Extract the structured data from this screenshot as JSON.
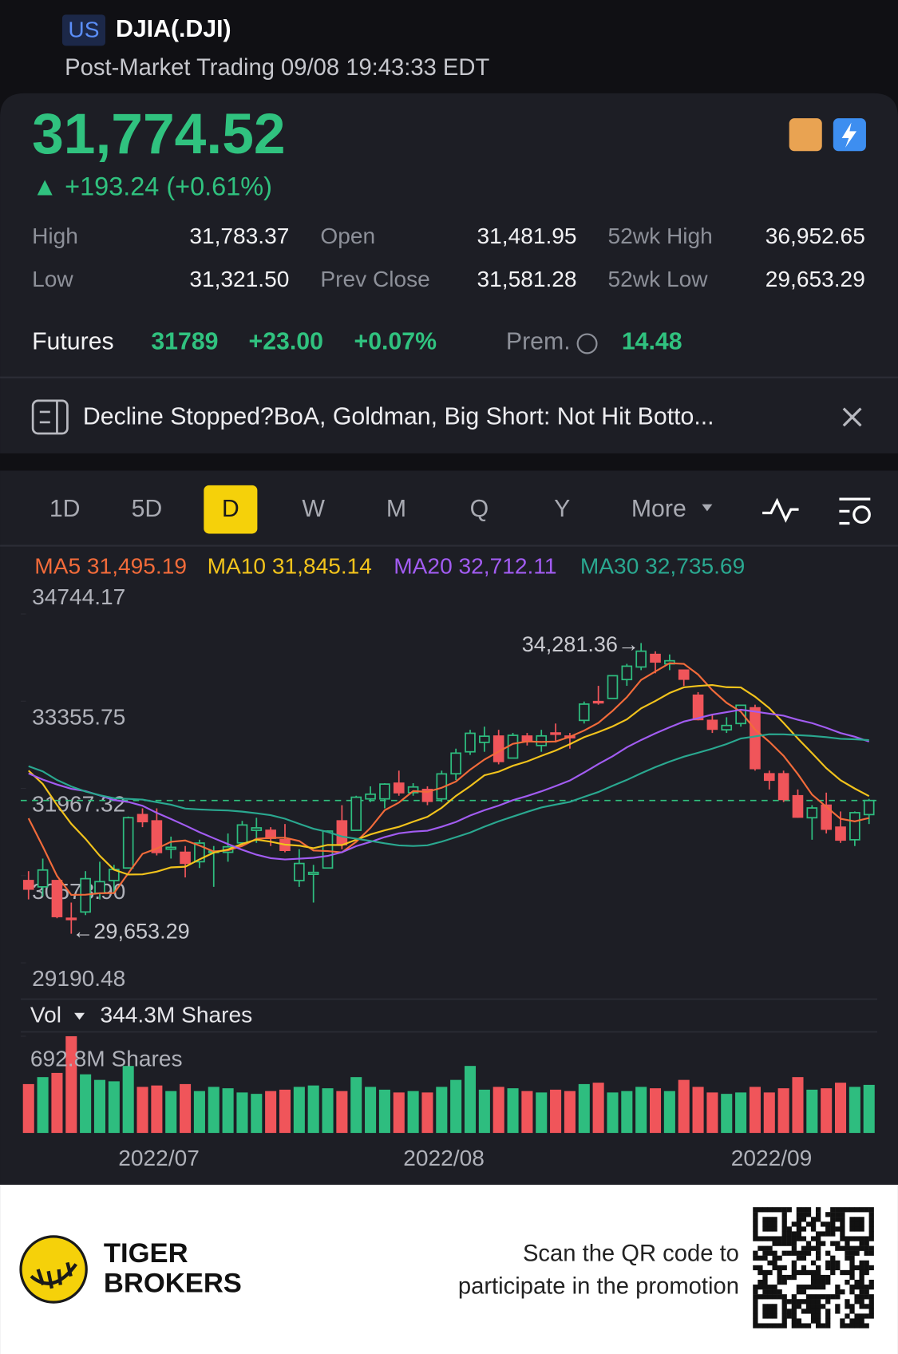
{
  "header": {
    "market": "US",
    "symbol": "DJIA(.DJI)",
    "status": "Post-Market Trading 09/08 19:43:33 EDT"
  },
  "quote": {
    "price": "31,774.52",
    "change": "▲ +193.24 (+0.61%)",
    "stats": [
      {
        "label": "High",
        "value": "31,783.37"
      },
      {
        "label": "Open",
        "value": "31,481.95"
      },
      {
        "label": "52wk High",
        "value": "36,952.65"
      },
      {
        "label": "Low",
        "value": "31,321.50"
      },
      {
        "label": "Prev Close",
        "value": "31,581.28"
      },
      {
        "label": "52wk Low",
        "value": "29,653.29"
      }
    ],
    "futures": {
      "label": "Futures",
      "price": "31789",
      "change": "+23.00",
      "percent": "+0.07%",
      "premium_label": "Prem.",
      "premium": "14.48"
    }
  },
  "news": {
    "headline": "Decline Stopped?BoA, Goldman,  Big Short: Not Hit Botto..."
  },
  "tabs": [
    "1D",
    "5D",
    "D",
    "W",
    "M",
    "Q",
    "Y",
    "More"
  ],
  "active_tab": 2,
  "chart_data": {
    "type": "candlestick",
    "categories": [
      null,
      null,
      null,
      null,
      null,
      null,
      null,
      null,
      null,
      null,
      null,
      null,
      "2022/07",
      null,
      null,
      null,
      null,
      null,
      null,
      null,
      null,
      null,
      null,
      null,
      null,
      null,
      null,
      null,
      null,
      null,
      null,
      null,
      "2022/08",
      null,
      null,
      null,
      null,
      null,
      null,
      null,
      null,
      null,
      null,
      null,
      null,
      null,
      null,
      null,
      null,
      null,
      null,
      null,
      null,
      null,
      null,
      "2022/09",
      null,
      null,
      null,
      null
    ],
    "ohlc": {
      "open": [
        30500,
        30400,
        30500,
        29900,
        30000,
        30300,
        30500,
        30700,
        31550,
        31450,
        31000,
        30950,
        30800,
        30950,
        30950,
        31100,
        31300,
        31300,
        31150,
        30500,
        30600,
        30700,
        31450,
        31300,
        31800,
        31800,
        32050,
        31900,
        31950,
        31800,
        32200,
        32550,
        32700,
        32800,
        32450,
        32800,
        32650,
        32850,
        32800,
        33050,
        33350,
        33400,
        33700,
        33900,
        34100,
        33950,
        33850,
        33450,
        33050,
        32900,
        33000,
        33250,
        32200,
        32200,
        31850,
        31500,
        31700,
        31350,
        31150,
        31550
      ],
      "high": [
        30650,
        30850,
        30500,
        30150,
        30650,
        30800,
        30750,
        31520,
        31650,
        31650,
        31200,
        31050,
        31150,
        31050,
        31250,
        31450,
        31500,
        31350,
        31400,
        31000,
        30750,
        31300,
        31700,
        31850,
        32000,
        32050,
        32250,
        32050,
        32000,
        32250,
        32600,
        32900,
        32950,
        32900,
        32850,
        32850,
        32900,
        33000,
        32850,
        33350,
        33600,
        33770,
        33950,
        34281.36,
        34150,
        34100,
        33850,
        33500,
        33150,
        33100,
        33300,
        33300,
        32250,
        32250,
        31950,
        31700,
        31900,
        31600,
        31600,
        31800
      ],
      "low": [
        30200,
        30250,
        29900,
        29653.29,
        29950,
        30200,
        30300,
        30700,
        31350,
        30900,
        30850,
        30550,
        30700,
        30400,
        30800,
        31050,
        31100,
        31050,
        30950,
        30400,
        30150,
        30700,
        31000,
        31300,
        31750,
        31650,
        31850,
        31850,
        31700,
        31750,
        32100,
        32500,
        32550,
        32350,
        32450,
        32650,
        32550,
        32700,
        32600,
        33000,
        33300,
        33400,
        33600,
        33850,
        33800,
        33850,
        33600,
        33050,
        32850,
        32850,
        32950,
        32250,
        31950,
        31750,
        31500,
        31150,
        31250,
        31100,
        31050,
        31400
      ],
      "close": [
        30364,
        30668,
        29927,
        29888,
        30530,
        30483,
        30677,
        31501,
        31438,
        30947,
        31029,
        30775,
        31097,
        30968,
        31037,
        31385,
        31339,
        31173,
        30981,
        30772,
        30630,
        31288,
        31072,
        31827,
        31875,
        32036,
        31899,
        31990,
        31762,
        32198,
        32529,
        32845,
        32798,
        32396,
        32812,
        32726,
        32803,
        32832,
        32774,
        33309,
        33336,
        33761,
        33913,
        34152,
        33980,
        33999,
        33706,
        33063,
        32910,
        32969,
        33291,
        32283,
        32098,
        31791,
        31510,
        31656,
        31318,
        31145,
        31581,
        31774.52
      ]
    },
    "up_color": "#2ebd7f",
    "down_color": "#f0555a",
    "ma": [
      {
        "name": "MA5",
        "color": "#f26b3a",
        "value_label": "31,495.19",
        "values": [
          31491,
          31043,
          30574,
          30273,
          30275,
          30299,
          30301,
          30616,
          30926,
          31009,
          31118,
          31138,
          31057,
          30963,
          30981,
          31052,
          31165,
          31180,
          31183,
          31130,
          30979,
          30969,
          30949,
          31118,
          31338,
          31620,
          31742,
          31925,
          31912,
          31977,
          32076,
          32265,
          32426,
          32553,
          32676,
          32715,
          32707,
          32714,
          32789,
          32889,
          33011,
          33202,
          33419,
          33694,
          33828,
          33961,
          33950,
          33780,
          33532,
          33329,
          33188,
          32903,
          32710,
          32486,
          32195,
          31868,
          31675,
          31484,
          31442,
          31495.19
        ]
      },
      {
        "name": "MA10",
        "color": "#f2c31c",
        "value_label": "31,845.14",
        "values": [
          32251,
          32037,
          31705,
          31404,
          31165,
          30895,
          30672,
          30595,
          30599,
          30642,
          30709,
          30720,
          30837,
          30945,
          30995,
          31085,
          31152,
          31119,
          31073,
          31056,
          31016,
          31067,
          31065,
          31150,
          31234,
          31299,
          31355,
          31437,
          31515,
          31658,
          31848,
          32003,
          32176,
          32233,
          32327,
          32396,
          32486,
          32570,
          32671,
          32782,
          32863,
          32955,
          33066,
          33242,
          33359,
          33486,
          33576,
          33599,
          33613,
          33579,
          33574,
          33427,
          33245,
          33009,
          32762,
          32528,
          32289,
          32097,
          31964,
          31845.14
        ]
      },
      {
        "name": "MA20",
        "color": "#a25cf2",
        "value_label": "32,712.11",
        "values": [
          32207,
          32107,
          32029,
          31961,
          31924,
          31854,
          31782,
          31751,
          31691,
          31578,
          31480,
          31378,
          31271,
          31174,
          31080,
          30990,
          30912,
          30857,
          30836,
          30849,
          30862,
          30893,
          30951,
          31047,
          31115,
          31192,
          31253,
          31278,
          31294,
          31357,
          31432,
          31535,
          31620,
          31692,
          31780,
          31847,
          31921,
          32004,
          32093,
          32220,
          32355,
          32479,
          32621,
          32737,
          32843,
          32941,
          33031,
          33085,
          33142,
          33181,
          33219,
          33191,
          33156,
          33125,
          33060,
          33007,
          32933,
          32848,
          32789,
          32712.11
        ]
      },
      {
        "name": "MA30",
        "color": "#2aa890",
        "value_label": "32,735.69",
        "values": [
          32320,
          32238,
          32100,
          31997,
          31918,
          31859,
          31810,
          31799,
          31789,
          31747,
          31707,
          31645,
          31632,
          31622,
          31615,
          31598,
          31572,
          31541,
          31485,
          31404,
          31325,
          31274,
          31202,
          31166,
          31131,
          31093,
          31060,
          31050,
          31062,
          31119,
          31191,
          31263,
          31359,
          31443,
          31519,
          31593,
          31664,
          31709,
          31753,
          31832,
          31909,
          32008,
          32102,
          32208,
          32306,
          32394,
          32472,
          32535,
          32600,
          32673,
          32762,
          32795,
          32829,
          32828,
          32816,
          32803,
          32784,
          32756,
          32749,
          32735.69
        ]
      }
    ],
    "ylim": [
      29190.48,
      34744.17
    ],
    "yticks": [
      34744.17,
      33355.75,
      31967.32,
      {
        "value": 30578.9,
        "label": "30578.90"
      },
      29190.48
    ],
    "annotations": [
      "34,281.36→",
      "←29,653.29"
    ],
    "volume_title": "Vol",
    "current_volume_label": "344.3M Shares",
    "volume": [
      350,
      400,
      430,
      692.8,
      420,
      380,
      370,
      480,
      330,
      340,
      300,
      350,
      300,
      330,
      320,
      290,
      280,
      300,
      310,
      330,
      340,
      320,
      300,
      400,
      330,
      310,
      290,
      300,
      290,
      330,
      380,
      480,
      310,
      330,
      320,
      300,
      290,
      310,
      300,
      350,
      360,
      290,
      300,
      330,
      320,
      300,
      380,
      330,
      290,
      280,
      290,
      330,
      290,
      320,
      400,
      310,
      320,
      360,
      330,
      344.3
    ],
    "vlim": [
      0,
      692.8
    ],
    "vticks": [
      {
        "value": 692.8,
        "label": "692.8M Shares"
      }
    ]
  },
  "footer": {
    "brand": [
      "TIGER",
      "BROKERS"
    ],
    "prompt": [
      "Scan the QR code to",
      "participate in the promotion"
    ]
  }
}
